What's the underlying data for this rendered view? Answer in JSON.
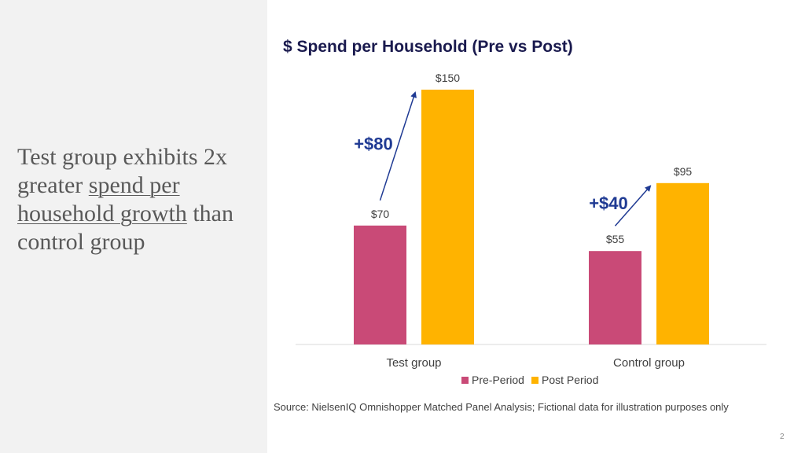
{
  "slide": {
    "headline_parts": [
      "Test group exhibits 2x greater ",
      "spend per household growth",
      " than control group"
    ],
    "source": "Source: NielsenIQ Omnishopper Matched Panel Analysis; Fictional data for illustration purposes only",
    "page_number": "2"
  },
  "colors": {
    "pre_period": "#c94a77",
    "post_period": "#ffb300",
    "annotation": "#1f3a93",
    "axis": "#d9d9d9"
  },
  "chart_data": {
    "type": "bar",
    "title": "$ Spend per Household (Pre vs Post)",
    "categories": [
      "Test group",
      "Control group"
    ],
    "series": [
      {
        "name": "Pre-Period",
        "values": [
          70,
          55
        ],
        "labels": [
          "$70",
          "$55"
        ]
      },
      {
        "name": "Post Period",
        "values": [
          150,
          95
        ],
        "labels": [
          "$150",
          "$95"
        ]
      }
    ],
    "annotations": [
      "+$80",
      "+$40"
    ],
    "ylim": [
      0,
      150
    ],
    "legend_position": "bottom",
    "grid": false
  }
}
